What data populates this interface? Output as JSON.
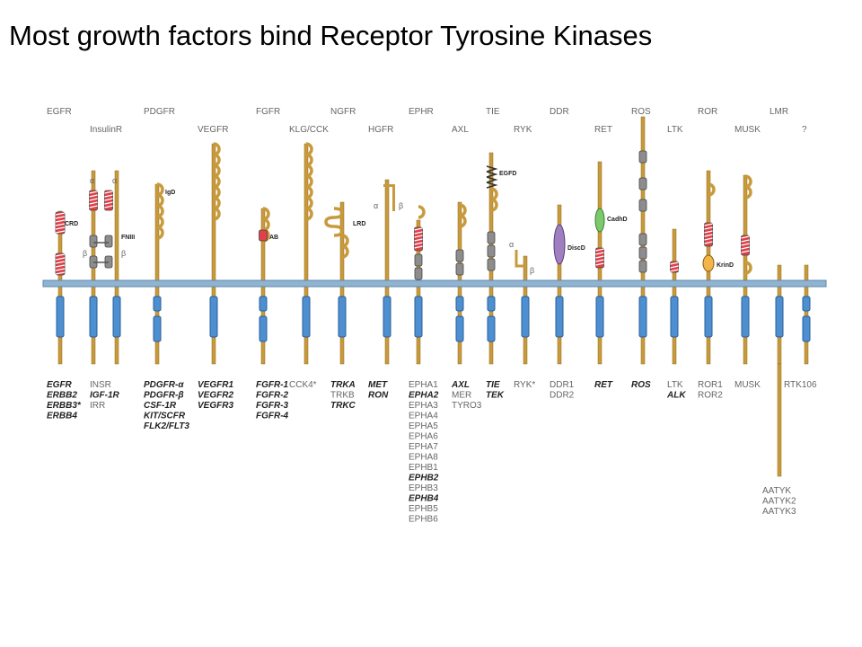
{
  "slide": {
    "title": "Most growth factors bind Receptor Tyrosine Kinases"
  },
  "families": [
    {
      "id": "egfr",
      "label": "EGFR",
      "row": 0,
      "members": [
        {
          "t": "EGFR",
          "b": true
        },
        {
          "t": "ERBB2",
          "b": true
        },
        {
          "t": "ERBB3*",
          "b": true
        },
        {
          "t": "ERBB4",
          "b": true
        }
      ]
    },
    {
      "id": "insulinr",
      "label": "InsulinR",
      "row": 1,
      "members": [
        {
          "t": "INSR"
        },
        {
          "t": "IGF-1R",
          "b": true
        },
        {
          "t": "IRR"
        }
      ]
    },
    {
      "id": "pdgfr",
      "label": "PDGFR",
      "row": 0,
      "members": [
        {
          "t": "PDGFR-α",
          "b": true
        },
        {
          "t": "PDGFR-β",
          "b": true
        },
        {
          "t": "CSF-1R",
          "b": true
        },
        {
          "t": "KIT/SCFR",
          "b": true
        },
        {
          "t": "FLK2/FLT3",
          "b": true
        }
      ]
    },
    {
      "id": "vegfr",
      "label": "VEGFR",
      "row": 1,
      "members": [
        {
          "t": "VEGFR1",
          "b": true
        },
        {
          "t": "VEGFR2",
          "b": true
        },
        {
          "t": "VEGFR3",
          "b": true
        }
      ]
    },
    {
      "id": "fgfr",
      "label": "FGFR",
      "row": 0,
      "members": [
        {
          "t": "FGFR-1",
          "b": true
        },
        {
          "t": "FGFR-2",
          "b": true
        },
        {
          "t": "FGFR-3",
          "b": true
        },
        {
          "t": "FGFR-4",
          "b": true
        }
      ]
    },
    {
      "id": "klgcck",
      "label": "KLG/CCK",
      "row": 1,
      "members": [
        {
          "t": "CCK4*"
        }
      ]
    },
    {
      "id": "ngfr",
      "label": "NGFR",
      "row": 0,
      "members": [
        {
          "t": "TRKA",
          "b": true
        },
        {
          "t": "TRKB"
        },
        {
          "t": "TRKC",
          "b": true
        }
      ]
    },
    {
      "id": "hgfr",
      "label": "HGFR",
      "row": 1,
      "members": [
        {
          "t": "MET",
          "b": true
        },
        {
          "t": "RON",
          "b": true
        }
      ]
    },
    {
      "id": "ephr",
      "label": "EPHR",
      "row": 0,
      "members": [
        {
          "t": "EPHA1"
        },
        {
          "t": "EPHA2",
          "b": true
        },
        {
          "t": "EPHA3"
        },
        {
          "t": "EPHA4"
        },
        {
          "t": "EPHA5"
        },
        {
          "t": "EPHA6"
        },
        {
          "t": "EPHA7"
        },
        {
          "t": "EPHA8"
        },
        {
          "t": "EPHB1"
        },
        {
          "t": "EPHB2",
          "b": true
        },
        {
          "t": "EPHB3"
        },
        {
          "t": "EPHB4",
          "b": true
        },
        {
          "t": "EPHB5"
        },
        {
          "t": "EPHB6"
        }
      ]
    },
    {
      "id": "axl",
      "label": "AXL",
      "row": 1,
      "members": [
        {
          "t": "AXL",
          "b": true
        },
        {
          "t": "MER"
        },
        {
          "t": "TYRO3"
        }
      ]
    },
    {
      "id": "tie",
      "label": "TIE",
      "row": 0,
      "members": [
        {
          "t": "TIE",
          "b": true
        },
        {
          "t": "TEK",
          "b": true
        }
      ]
    },
    {
      "id": "ryk",
      "label": "RYK",
      "row": 1,
      "members": [
        {
          "t": "RYK*"
        }
      ]
    },
    {
      "id": "ddr",
      "label": "DDR",
      "row": 0,
      "members": [
        {
          "t": "DDR1"
        },
        {
          "t": "DDR2"
        }
      ]
    },
    {
      "id": "ret",
      "label": "RET",
      "row": 1,
      "members": [
        {
          "t": "RET",
          "b": true
        }
      ]
    },
    {
      "id": "ros",
      "label": "ROS",
      "row": 0,
      "members": [
        {
          "t": "ROS",
          "b": true
        }
      ]
    },
    {
      "id": "ltk",
      "label": "LTK",
      "row": 1,
      "members": [
        {
          "t": "LTK"
        },
        {
          "t": "ALK",
          "b": true
        }
      ]
    },
    {
      "id": "ror",
      "label": "ROR",
      "row": 0,
      "members": [
        {
          "t": "ROR1"
        },
        {
          "t": "ROR2"
        }
      ]
    },
    {
      "id": "musk",
      "label": "MUSK",
      "row": 1,
      "members": [
        {
          "t": "MUSK"
        }
      ]
    },
    {
      "id": "lmr",
      "label": "LMR",
      "row": 0,
      "members": [
        {
          "t": "RTK106"
        }
      ]
    },
    {
      "id": "unknown",
      "label": "?",
      "row": 1,
      "members": [
        {
          "t": "AATYK"
        },
        {
          "t": "AATYK2"
        },
        {
          "t": "AATYK3"
        }
      ]
    }
  ],
  "domain_labels": {
    "crd": "CRD",
    "fniii": "FNIII",
    "igd": "IgD",
    "ab": "AB",
    "lrd": "LRD",
    "egfd": "EGFD",
    "discd": "DiscD",
    "cadhd": "CadhD",
    "krind": "KrinD",
    "alpha": "α",
    "beta": "β"
  },
  "colors": {
    "membrane": "#8fb3d1",
    "membrane_edge": "#5d88ad",
    "stalk": "#c89a3c",
    "stalk_edge": "#8f6a1f",
    "kinase": "#4d8fd1",
    "kinase_edge": "#2a5f97",
    "crd": "#e0404a",
    "fn": "#8d8d8d",
    "disc": "#a07fc0",
    "cadh": "#7bc96b",
    "krin": "#f2b54a",
    "text_gray": "#666666",
    "text_dark": "#222222"
  }
}
